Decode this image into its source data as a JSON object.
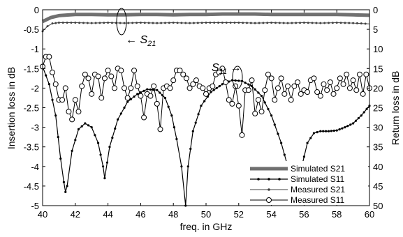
{
  "chart_data": {
    "type": "line",
    "title": "",
    "xlabel": "freq. in GHz",
    "ylabel": "Insertion loss in dB",
    "y2label": "Return loss in dB",
    "xlim": [
      40,
      60
    ],
    "ylim": [
      -5,
      0
    ],
    "y2lim": [
      -50,
      0
    ],
    "x_ticks": [
      40,
      42,
      44,
      46,
      48,
      50,
      52,
      54,
      56,
      58,
      60
    ],
    "y_ticks": [
      0,
      -0.5,
      -1,
      -1.5,
      -2,
      -2.5,
      -3,
      -3.5,
      -4,
      -4.5,
      -5
    ],
    "y2_ticks": [
      0,
      -5,
      -10,
      -15,
      -20,
      -25,
      -30,
      -35,
      -40,
      -45,
      -50
    ],
    "y_tick_labels": [
      "0",
      "-0.5",
      "-1",
      "-1.5",
      "-2",
      "-2.5",
      "-3",
      "-3.5",
      "-4",
      "-4.5",
      "-5"
    ],
    "y2_tick_labels": [
      "0",
      "5",
      "10",
      "15",
      "20",
      "25",
      "30",
      "35",
      "40",
      "45",
      "50"
    ],
    "grid": false,
    "legend_position": "bottom-right",
    "series": [
      {
        "name": "Simulated S21",
        "axis": "left",
        "style": "thick",
        "color": "#707070",
        "x": [
          40,
          40.5,
          41,
          42,
          43,
          44,
          45,
          46,
          47,
          48,
          49,
          50,
          51,
          52,
          53,
          54,
          55,
          56,
          57,
          58,
          59,
          60
        ],
        "y": [
          -0.3,
          -0.2,
          -0.15,
          -0.12,
          -0.12,
          -0.13,
          -0.13,
          -0.12,
          -0.12,
          -0.13,
          -0.12,
          -0.12,
          -0.11,
          -0.11,
          -0.11,
          -0.12,
          -0.12,
          -0.12,
          -0.12,
          -0.12,
          -0.13,
          -0.14
        ]
      },
      {
        "name": "Simulated S11",
        "axis": "right",
        "style": "line-dots",
        "color": "#000000",
        "x": [
          40,
          40.4,
          40.8,
          41.1,
          41.3,
          41.4,
          41.5,
          41.8,
          42.2,
          42.6,
          43.0,
          43.4,
          43.7,
          43.8,
          44.1,
          44.6,
          45.2,
          45.8,
          46.4,
          47.0,
          47.5,
          47.9,
          48.2,
          48.5,
          48.75,
          48.9,
          49.2,
          49.7,
          50.3,
          51.0,
          51.6,
          52.2,
          52.8,
          53.4,
          54.0,
          54.6,
          55.0,
          55.3,
          55.5,
          55.8,
          56.2,
          56.6,
          57.0,
          57.5,
          58.0,
          58.5,
          59.0,
          59.5,
          60.0
        ],
        "y": [
          -14.5,
          -19,
          -27,
          -38,
          -44,
          -46.5,
          -45,
          -36,
          -30.5,
          -29,
          -30,
          -34,
          -40,
          -43,
          -35,
          -28,
          -23.5,
          -21.5,
          -20.3,
          -20.5,
          -22.5,
          -27,
          -33,
          -40,
          -50,
          -40,
          -31,
          -24.5,
          -21,
          -19,
          -18,
          -18.2,
          -19.5,
          -22,
          -27,
          -34,
          -40,
          -44,
          -46,
          -41,
          -34,
          -31.5,
          -31,
          -31,
          -30.8,
          -30,
          -29,
          -27,
          -24.5
        ]
      },
      {
        "name": "Measured S21",
        "axis": "left",
        "style": "thin-dots",
        "color": "#404040",
        "x": [
          40,
          40.3,
          40.6,
          41,
          42,
          43,
          44,
          45,
          46,
          47,
          48,
          49,
          50,
          51,
          52,
          53,
          54,
          55,
          56,
          57,
          58,
          59,
          60
        ],
        "y": [
          -0.55,
          -0.42,
          -0.35,
          -0.33,
          -0.33,
          -0.34,
          -0.33,
          -0.34,
          -0.33,
          -0.34,
          -0.33,
          -0.34,
          -0.33,
          -0.33,
          -0.33,
          -0.34,
          -0.33,
          -0.34,
          -0.33,
          -0.34,
          -0.33,
          -0.34,
          -0.36
        ]
      },
      {
        "name": "Measured S11",
        "axis": "right",
        "style": "circles",
        "color": "#000000",
        "x": [
          40,
          40.2,
          40.4,
          40.6,
          40.8,
          41.0,
          41.2,
          41.4,
          41.6,
          41.8,
          42.0,
          42.2,
          42.4,
          42.6,
          42.8,
          43.0,
          43.2,
          43.4,
          43.6,
          43.8,
          44.0,
          44.2,
          44.4,
          44.6,
          44.8,
          45.0,
          45.2,
          45.4,
          45.6,
          45.8,
          46.0,
          46.2,
          46.4,
          46.6,
          46.8,
          47.0,
          47.2,
          47.4,
          47.6,
          47.8,
          48.0,
          48.2,
          48.4,
          48.6,
          48.8,
          49.0,
          49.2,
          49.4,
          49.6,
          49.8,
          50.0,
          50.2,
          50.4,
          50.6,
          50.8,
          51.0,
          51.2,
          51.4,
          51.6,
          51.8,
          52.0,
          52.2,
          52.4,
          52.6,
          52.8,
          53.0,
          53.2,
          53.4,
          53.6,
          53.8,
          54.0,
          54.2,
          54.4,
          54.6,
          54.8,
          55.0,
          55.2,
          55.4,
          55.6,
          55.8,
          56.0,
          56.2,
          56.4,
          56.6,
          56.8,
          57.0,
          57.2,
          57.4,
          57.6,
          57.8,
          58.0,
          58.2,
          58.4,
          58.6,
          58.8,
          59.0,
          59.2,
          59.4,
          59.6,
          59.8,
          60.0
        ],
        "y": [
          -14.5,
          -12,
          -12,
          -16,
          -19,
          -23,
          -23,
          -20,
          -26,
          -28,
          -23,
          -26,
          -19.5,
          -16.5,
          -17.5,
          -21.5,
          -16.5,
          -17,
          -22.5,
          -17.5,
          -15.5,
          -17,
          -20,
          -15,
          -15.5,
          -20,
          -22.5,
          -20,
          -15.5,
          -19.5,
          -22,
          -27.5,
          -21.5,
          -22,
          -19.5,
          -24,
          -30.5,
          -20,
          -19.5,
          -20,
          -18,
          -15.5,
          -15.5,
          -16.5,
          -17.5,
          -20,
          -19,
          -18,
          -19.5,
          -20,
          -21.5,
          -20,
          -19.5,
          -16.5,
          -16,
          -15,
          -18.5,
          -23,
          -24,
          -19.5,
          -24.5,
          -32,
          -20.5,
          -20.5,
          -18,
          -26.5,
          -23,
          -26,
          -20.5,
          -16.5,
          -17.5,
          -23,
          -20,
          -17.5,
          -21.5,
          -19.5,
          -23,
          -19.5,
          -18.5,
          -21.5,
          -20.5,
          -21,
          -18,
          -17.5,
          -21,
          -22,
          -19,
          -20.5,
          -18.5,
          -21.5,
          -20,
          -17.5,
          -19,
          -16.5,
          -20,
          -18,
          -20.5,
          -16.5,
          -21.5,
          -16.5,
          -20
        ]
      }
    ],
    "annotations": [
      {
        "id": "s21",
        "text_prefix": "← S",
        "text_sub": "21"
      },
      {
        "id": "s11",
        "text_prefix": "S",
        "text_sub": "11",
        "text_suffix": " →"
      }
    ]
  }
}
